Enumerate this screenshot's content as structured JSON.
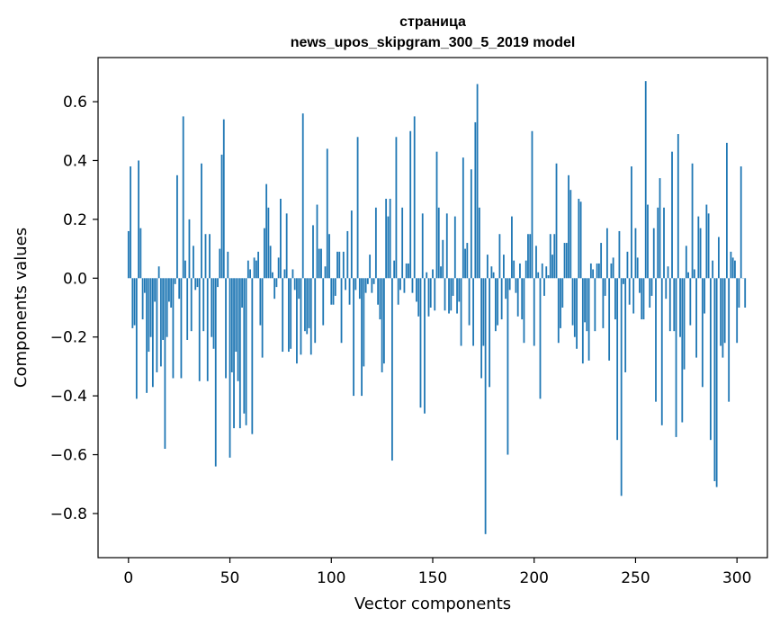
{
  "chart_data": {
    "type": "bar",
    "title_lines": [
      "страница",
      "news_upos_skipgram_300_5_2019 model"
    ],
    "xlabel": "Vector components",
    "ylabel": "Components values",
    "xlim": [
      -15,
      315
    ],
    "ylim": [
      -0.95,
      0.75
    ],
    "x_ticks": [
      0,
      50,
      100,
      150,
      200,
      250,
      300
    ],
    "x_tick_labels": [
      "0",
      "50",
      "100",
      "150",
      "200",
      "250",
      "300"
    ],
    "y_ticks": [
      -0.8,
      -0.6,
      -0.4,
      -0.2,
      0.0,
      0.2,
      0.4,
      0.6
    ],
    "y_tick_labels": [
      "−0.8",
      "−0.6",
      "−0.4",
      "−0.2",
      "0.0",
      "0.2",
      "0.4",
      "0.6"
    ],
    "grid": false,
    "bar_color": "#1f77b4",
    "values": [
      0.16,
      0.38,
      -0.17,
      -0.16,
      -0.41,
      0.4,
      0.17,
      -0.14,
      -0.05,
      -0.39,
      -0.25,
      -0.2,
      -0.37,
      -0.08,
      -0.32,
      0.04,
      -0.3,
      -0.21,
      -0.58,
      -0.2,
      -0.08,
      -0.1,
      -0.34,
      -0.02,
      0.35,
      -0.07,
      -0.34,
      0.55,
      0.06,
      -0.21,
      0.2,
      -0.18,
      0.11,
      -0.04,
      -0.03,
      -0.35,
      0.39,
      -0.18,
      0.15,
      -0.35,
      0.15,
      -0.2,
      -0.24,
      -0.64,
      -0.03,
      0.1,
      0.42,
      0.54,
      -0.34,
      0.09,
      -0.61,
      -0.32,
      -0.51,
      -0.25,
      -0.35,
      -0.51,
      -0.1,
      -0.46,
      -0.5,
      0.06,
      0.03,
      -0.53,
      0.07,
      0.06,
      0.09,
      -0.16,
      -0.27,
      0.17,
      0.32,
      0.24,
      0.11,
      0.02,
      -0.07,
      -0.03,
      0.07,
      0.27,
      -0.25,
      0.03,
      0.22,
      -0.25,
      -0.24,
      0.03,
      -0.04,
      -0.29,
      -0.07,
      -0.26,
      0.56,
      -0.18,
      -0.19,
      -0.17,
      -0.26,
      0.18,
      -0.22,
      0.25,
      0.1,
      0.1,
      -0.16,
      0.04,
      0.44,
      0.15,
      -0.09,
      -0.09,
      -0.06,
      0.09,
      0.09,
      -0.22,
      0.09,
      -0.04,
      0.16,
      -0.09,
      0.23,
      -0.4,
      -0.04,
      0.48,
      -0.07,
      -0.4,
      -0.3,
      -0.05,
      -0.02,
      0.08,
      -0.05,
      -0.02,
      0.24,
      -0.09,
      -0.14,
      -0.32,
      -0.29,
      0.27,
      0.21,
      0.27,
      -0.62,
      0.06,
      0.48,
      -0.09,
      -0.04,
      0.24,
      -0.05,
      0.05,
      0.05,
      0.5,
      -0.05,
      0.55,
      -0.08,
      -0.13,
      -0.44,
      0.22,
      -0.46,
      0.02,
      -0.13,
      -0.1,
      0.03,
      -0.11,
      0.43,
      0.24,
      0.04,
      0.13,
      -0.11,
      0.22,
      -0.12,
      -0.11,
      -0.06,
      0.21,
      -0.12,
      -0.08,
      -0.23,
      0.41,
      0.1,
      0.12,
      -0.16,
      0.37,
      -0.23,
      0.53,
      0.66,
      0.24,
      -0.34,
      -0.23,
      -0.87,
      0.08,
      -0.37,
      0.04,
      0.02,
      -0.18,
      -0.16,
      0.15,
      -0.14,
      0.08,
      -0.07,
      -0.6,
      -0.04,
      0.21,
      0.06,
      -0.05,
      -0.13,
      0.05,
      -0.14,
      -0.22,
      0.06,
      0.15,
      0.15,
      0.5,
      -0.23,
      0.11,
      0.02,
      -0.41,
      0.05,
      -0.06,
      0.04,
      0.01,
      0.15,
      0.08,
      0.15,
      0.39,
      -0.22,
      -0.17,
      -0.1,
      0.12,
      0.12,
      0.35,
      0.3,
      -0.16,
      -0.2,
      -0.24,
      0.27,
      0.26,
      -0.29,
      -0.15,
      -0.18,
      -0.28,
      0.05,
      0.03,
      -0.18,
      0.05,
      0.05,
      0.12,
      -0.17,
      -0.06,
      0.17,
      -0.28,
      0.05,
      0.07,
      -0.14,
      -0.55,
      0.16,
      -0.74,
      -0.02,
      -0.32,
      0.09,
      -0.09,
      0.38,
      -0.12,
      0.17,
      0.07,
      -0.05,
      -0.14,
      -0.14,
      0.67,
      0.25,
      -0.1,
      -0.06,
      0.17,
      -0.42,
      0.24,
      0.34,
      -0.5,
      0.24,
      -0.07,
      0.04,
      -0.18,
      0.43,
      -0.18,
      -0.54,
      0.49,
      -0.2,
      -0.49,
      -0.31,
      0.11,
      0.02,
      -0.16,
      0.39,
      0.03,
      -0.27,
      0.21,
      0.17,
      -0.37,
      -0.12,
      0.25,
      0.22,
      -0.55,
      0.06,
      -0.69,
      -0.71,
      0.14,
      -0.23,
      -0.27,
      -0.22,
      0.46,
      -0.42,
      0.09,
      0.07,
      0.06,
      -0.22,
      -0.1,
      0.38,
      0.0,
      -0.1
    ]
  }
}
